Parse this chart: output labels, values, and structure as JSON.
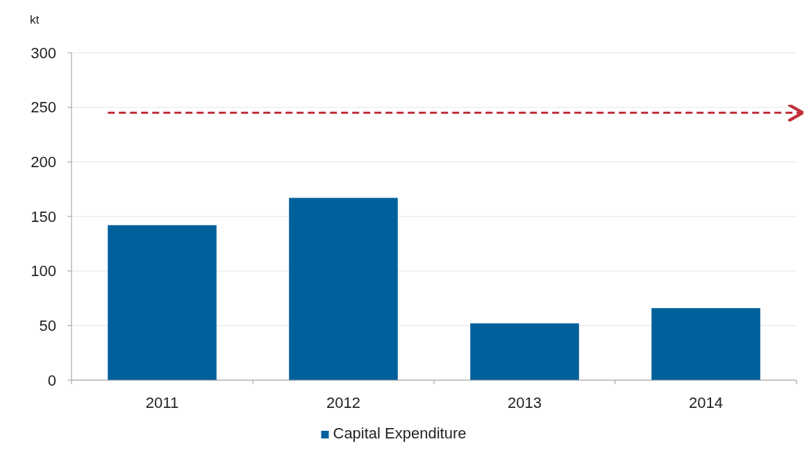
{
  "chart_data": {
    "type": "bar",
    "ylabel": "kt",
    "categories": [
      "2011",
      "2012",
      "2013",
      "2014"
    ],
    "series": [
      {
        "name": "Capital Expenditure",
        "color": "#00609c",
        "values": [
          142,
          167,
          52,
          66
        ]
      }
    ],
    "ylim": [
      0,
      300
    ],
    "yticks": [
      0,
      50,
      100,
      150,
      200,
      250,
      300
    ],
    "grid": "y",
    "legend": "bottom",
    "ref_lines": [
      {
        "axis": "y",
        "value": 245,
        "color": "#c0313b",
        "line_style": "dashed"
      }
    ]
  }
}
